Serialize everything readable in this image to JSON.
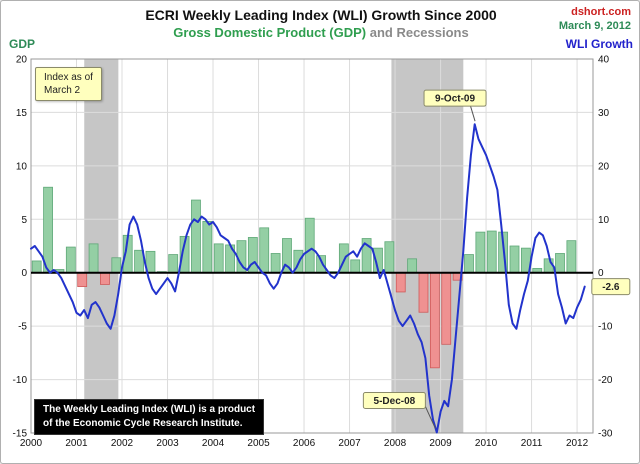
{
  "header": {
    "title": "ECRI Weekly Leading Index (WLI) Growth Since 2000",
    "subtitle_green": "Gross Domestic Product (GDP)",
    "subtitle_gray": " and Recessions",
    "source": "dshort.com",
    "date": "March 9, 2012"
  },
  "notes": {
    "index_line1": "Index as of",
    "index_line2": "March 2",
    "info_line1": "The Weekly Leading Index (WLI) is a product",
    "info_line2": "of the Economic Cycle Research Institute."
  },
  "chart_data": {
    "type": "mixed",
    "title": "ECRI Weekly Leading Index (WLI) Growth Since 2000",
    "subtitle": "Gross Domestic Product (GDP) and Recessions",
    "axes": {
      "left": {
        "label": "GDP",
        "min": -15,
        "max": 20,
        "ticks": [
          20,
          15,
          10,
          5,
          0,
          -5,
          -10,
          -15
        ],
        "color": "#2e8b57"
      },
      "right": {
        "label": "WLI Growth",
        "min": -30,
        "max": 40,
        "ticks": [
          40,
          30,
          20,
          10,
          0,
          -10,
          -20,
          -30
        ],
        "color": "#2222cc"
      },
      "x": {
        "min": 2000,
        "max": 2012.35,
        "tick_labels": [
          "2000",
          "2001",
          "2002",
          "2003",
          "2004",
          "2005",
          "2006",
          "2007",
          "2008",
          "2009",
          "2010",
          "2011",
          "2012"
        ]
      }
    },
    "grid": true,
    "recessions": [
      [
        2001.17,
        2001.92
      ],
      [
        2007.92,
        2009.5
      ]
    ],
    "series": [
      {
        "name": "GDP quarterly percent change (left axis)",
        "type": "bar",
        "axis": "left",
        "x_start": 2000.125,
        "x_step": 0.25,
        "values": [
          1.1,
          8.0,
          0.3,
          2.4,
          -1.3,
          2.7,
          -1.1,
          1.4,
          3.5,
          2.1,
          2.0,
          0.1,
          1.7,
          3.4,
          6.8,
          4.8,
          2.7,
          2.6,
          3.0,
          3.3,
          4.2,
          1.8,
          3.2,
          2.1,
          5.1,
          1.6,
          0.1,
          2.7,
          1.2,
          3.2,
          2.3,
          2.9,
          -1.8,
          1.3,
          -3.7,
          -8.9,
          -6.7,
          -0.7,
          1.7,
          3.8,
          3.9,
          3.8,
          2.5,
          2.3,
          0.4,
          1.3,
          1.8,
          3.0
        ]
      },
      {
        "name": "WLI Growth (right axis)",
        "type": "line",
        "axis": "right",
        "x_start": 2000.0,
        "x_step": 0.0833333,
        "values": [
          4.5,
          5,
          4,
          3,
          1,
          0,
          0.5,
          0,
          -1,
          -2.5,
          -4,
          -5.5,
          -7.5,
          -8,
          -7,
          -8.5,
          -6,
          -5.5,
          -6.5,
          -8,
          -9.5,
          -10.5,
          -8,
          -4,
          1,
          4,
          9,
          10.5,
          9,
          6,
          2,
          -1,
          -3,
          -4,
          -3,
          -2,
          -1,
          -2,
          -3.5,
          0,
          4,
          7,
          9,
          10,
          9.5,
          10.5,
          10,
          9,
          9.5,
          8.5,
          7,
          6.5,
          6,
          4.5,
          3.5,
          2,
          1,
          0.5,
          1.5,
          2,
          1,
          0,
          -0.5,
          -2,
          -3,
          -2,
          0,
          1.5,
          1,
          0,
          1,
          2.5,
          3.5,
          4,
          4.5,
          4,
          3,
          1.5,
          0.5,
          -0.5,
          -1,
          0,
          1.5,
          3,
          3.5,
          4,
          3,
          4.5,
          5.5,
          5,
          4.5,
          2,
          -1,
          0.5,
          -2,
          -4.5,
          -7,
          -9,
          -10,
          -9,
          -8,
          -9.5,
          -11.5,
          -13,
          -16,
          -23,
          -27.5,
          -29.9,
          -26,
          -24,
          -25,
          -20,
          -12,
          -4,
          4,
          14,
          22,
          27.8,
          25,
          23.5,
          22,
          20,
          18,
          15.5,
          9,
          2,
          -6,
          -9.5,
          -10.5,
          -7,
          -4,
          -1.5,
          3,
          6.5,
          7.5,
          7,
          5,
          2,
          1,
          -4,
          -6.5,
          -9.5,
          -8,
          -8.5,
          -6.5,
          -5,
          -2.6
        ]
      }
    ],
    "annotations": [
      {
        "label": "9-Oct-09",
        "x": 2009.78,
        "value": 27.8,
        "axis": "right",
        "placement": "above-left"
      },
      {
        "label": "5-Dec-08",
        "x": 2008.93,
        "value": -29.9,
        "axis": "right",
        "placement": "upper-left"
      },
      {
        "label": "-2.6",
        "x": 2012.17,
        "value": -2.6,
        "axis": "right",
        "placement": "right"
      }
    ],
    "colors": {
      "bar_pos": "#94cfa4",
      "bar_pos_stroke": "#5fa878",
      "bar_neg": "#ef9191",
      "bar_neg_stroke": "#cf5a5a",
      "line": "#2233cc",
      "recession": "#c6c6c6",
      "grid": "#dcdcdc",
      "zero": "#000000",
      "plot_border": "#999999",
      "annotation_bg": "#ffffbe",
      "annotation_border": "#8a8a6a"
    }
  }
}
